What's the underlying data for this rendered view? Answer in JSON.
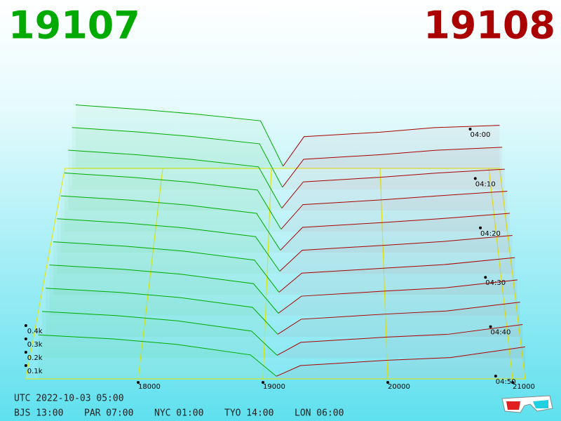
{
  "chart_data": {
    "type": "depth3d",
    "bid_price": "19107",
    "ask_price": "19108",
    "bid_color": "#00aa00",
    "ask_color": "#aa0000",
    "xlim": [
      17100,
      21100
    ],
    "xticks": [
      18000,
      19000,
      20000,
      21000
    ],
    "ylim": [
      0,
      400
    ],
    "yticks": [
      {
        "value": 100,
        "label": "0.1k"
      },
      {
        "value": 200,
        "label": "0.2k"
      },
      {
        "value": 300,
        "label": "0.3k"
      },
      {
        "value": 400,
        "label": "0.4k"
      }
    ],
    "tlim": [
      0,
      50
    ],
    "tticks": [
      {
        "value": 0,
        "label": "04:00"
      },
      {
        "value": 10,
        "label": "04:10"
      },
      {
        "value": 20,
        "label": "04:20"
      },
      {
        "value": 30,
        "label": "04:30"
      },
      {
        "value": 40,
        "label": "04:40"
      },
      {
        "value": 50,
        "label": "04:50"
      }
    ],
    "bid_prices": [
      17200,
      17800,
      18300,
      18900,
      19107
    ],
    "ask_prices": [
      19108,
      19300,
      20000,
      20500,
      21100
    ],
    "snapshots": [
      {
        "t": 0,
        "bids": [
          560,
          520,
          480,
          420,
          20
        ],
        "asks": [
          20,
          280,
          320,
          360,
          380
        ]
      },
      {
        "t": 5,
        "bids": [
          537,
          498,
          458,
          396,
          20
        ],
        "asks": [
          20,
          262,
          302,
          340,
          366
        ]
      },
      {
        "t": 10,
        "bids": [
          514,
          476,
          436,
          372,
          20
        ],
        "asks": [
          20,
          244,
          284,
          320,
          352
        ]
      },
      {
        "t": 15,
        "bids": [
          491,
          454,
          414,
          348,
          20
        ],
        "asks": [
          20,
          226,
          266,
          300,
          338
        ]
      },
      {
        "t": 20,
        "bids": [
          468,
          432,
          392,
          324,
          20
        ],
        "asks": [
          20,
          208,
          248,
          280,
          324
        ]
      },
      {
        "t": 25,
        "bids": [
          445,
          410,
          370,
          300,
          20
        ],
        "asks": [
          20,
          190,
          230,
          260,
          310
        ]
      },
      {
        "t": 30,
        "bids": [
          422,
          388,
          348,
          276,
          20
        ],
        "asks": [
          20,
          172,
          212,
          240,
          296
        ]
      },
      {
        "t": 35,
        "bids": [
          399,
          366,
          326,
          252,
          20
        ],
        "asks": [
          20,
          154,
          194,
          220,
          282
        ]
      },
      {
        "t": 40,
        "bids": [
          376,
          344,
          304,
          228,
          20
        ],
        "asks": [
          20,
          136,
          176,
          200,
          268
        ]
      },
      {
        "t": 45,
        "bids": [
          353,
          322,
          282,
          204,
          20
        ],
        "asks": [
          20,
          118,
          158,
          180,
          254
        ]
      },
      {
        "t": 50,
        "bids": [
          330,
          300,
          260,
          180,
          20
        ],
        "asks": [
          20,
          100,
          140,
          160,
          240
        ]
      }
    ],
    "utc": "UTC 2022-10-03 05:00",
    "zones": [
      "BJS 13:00",
      "PAR 07:00",
      "NYC 01:00",
      "TYO 14:00",
      "LON 06:00"
    ]
  }
}
